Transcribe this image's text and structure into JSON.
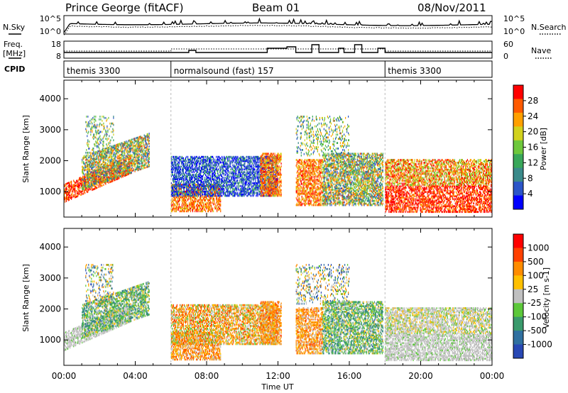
{
  "header": {
    "station": "Prince George (fitACF)",
    "beam": "Beam 01",
    "date": "08/Nov/2011"
  },
  "noise_panel": {
    "left_label": "N.Sky",
    "right_label": "N.Search",
    "left_ticks": [
      "10^5",
      "10^0"
    ],
    "right_ticks": [
      "10^5",
      "10^0"
    ]
  },
  "freq_panel": {
    "left_label_1": "Freq.",
    "left_label_2": "[MHz]",
    "right_label": "Nave",
    "left_ticks": [
      "18",
      "8"
    ],
    "right_ticks": [
      "60",
      "0"
    ]
  },
  "cpid_panel": {
    "label": "CPID",
    "modes": [
      {
        "name": "themis 3300",
        "start_hour": 0
      },
      {
        "name": "normalsound (fast) 157",
        "start_hour": 6
      },
      {
        "name": "themis 3300",
        "start_hour": 18
      }
    ]
  },
  "chart_data": [
    {
      "type": "heatmap",
      "quantity": "Power",
      "ylabel": "Slant Range [km]",
      "ylim": [
        180,
        4600
      ],
      "yticks": [
        "4000",
        "3000",
        "2000",
        "1000"
      ],
      "colorbar_label": "Power [dB]",
      "colorbar_ticks": [
        "28",
        "24",
        "20",
        "16",
        "12",
        "8",
        "4"
      ],
      "colors": [
        "#0000ff",
        "#2b55c8",
        "#3a8a8a",
        "#39a75a",
        "#6ec83c",
        "#d2d21e",
        "#ffa000",
        "#ff5a00",
        "#ff0000"
      ]
    },
    {
      "type": "heatmap",
      "quantity": "Velocity",
      "ylabel": "Slant Range [km]",
      "ylim": [
        180,
        4600
      ],
      "yticks": [
        "4000",
        "3000",
        "2000",
        "1000"
      ],
      "colorbar_label": "Velocity [m s-1]",
      "colorbar_ticks": [
        "1000",
        "500",
        "100",
        "25",
        "-25",
        "-100",
        "-500",
        "-1000"
      ],
      "colors": [
        "#2848b4",
        "#3070a0",
        "#3a9a6c",
        "#5cc83a",
        "#c0c0c0",
        "#ffc000",
        "#ff8c00",
        "#ff4000",
        "#ff0000"
      ],
      "xlabel": "Time UT",
      "xticks": [
        "00:00",
        "04:00",
        "08:00",
        "12:00",
        "16:00",
        "20:00",
        "00:00"
      ]
    }
  ]
}
